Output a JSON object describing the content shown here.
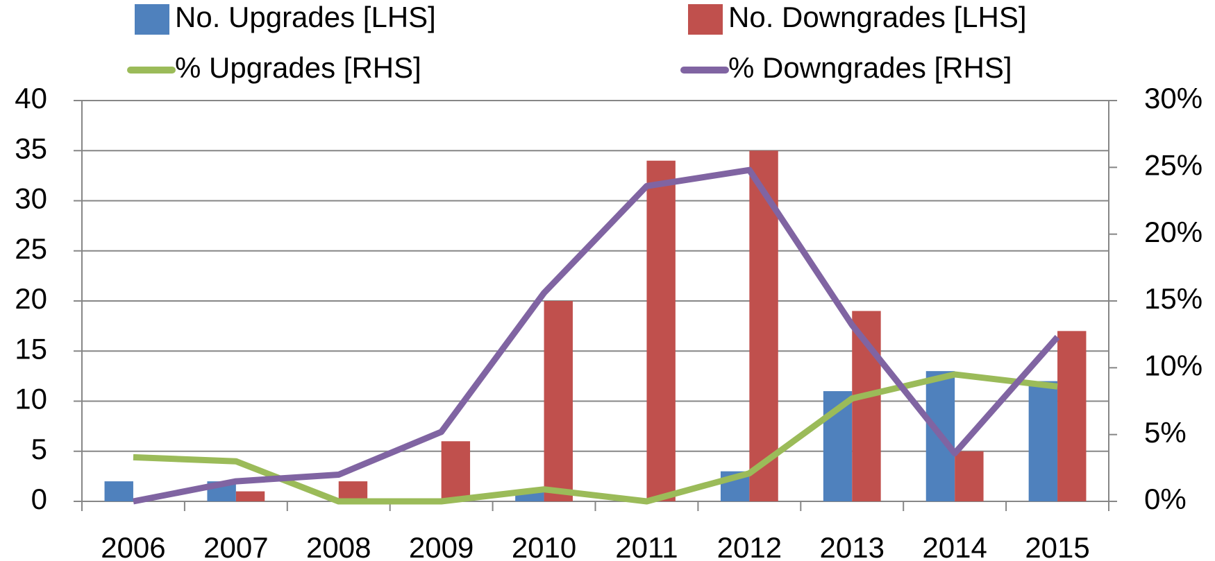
{
  "chart_data": {
    "type": "bar_line",
    "categories": [
      "2006",
      "2007",
      "2008",
      "2009",
      "2010",
      "2011",
      "2012",
      "2013",
      "2014",
      "2015"
    ],
    "series": [
      {
        "name": "No. Upgrades [LHS]",
        "type": "bar",
        "color": "#4f81bd",
        "values": [
          2,
          2,
          0,
          0,
          1,
          0,
          3,
          11,
          13,
          12
        ]
      },
      {
        "name": "No. Downgrades [LHS]",
        "type": "bar",
        "color": "#c0504d",
        "values": [
          0,
          1,
          2,
          6,
          20,
          34,
          35,
          19,
          5,
          17
        ]
      },
      {
        "name": "% Upgrades [RHS]",
        "type": "line",
        "axis": "y2",
        "color": "#9bbb59",
        "values": [
          3.3,
          3.0,
          0,
          0,
          0.9,
          0,
          2.1,
          7.7,
          9.5,
          8.6
        ]
      },
      {
        "name": "% Downgrades [RHS]",
        "type": "line",
        "axis": "y2",
        "color": "#8064a2",
        "values": [
          0,
          1.5,
          2.0,
          5.2,
          15.6,
          23.6,
          24.8,
          13.2,
          3.6,
          12.3
        ]
      }
    ],
    "ylim": [
      0,
      40
    ],
    "yticks": [
      0,
      5,
      10,
      15,
      20,
      25,
      30,
      35,
      40
    ],
    "y2lim": [
      0,
      30
    ],
    "y2ticks": [
      {
        "value": 0,
        "label": "0%"
      },
      {
        "value": 5,
        "label": "5%"
      },
      {
        "value": 10,
        "label": "10%"
      },
      {
        "value": 15,
        "label": "15%"
      },
      {
        "value": 20,
        "label": "20%"
      },
      {
        "value": 25,
        "label": "25%"
      },
      {
        "value": 30,
        "label": "30%"
      }
    ],
    "grid": true,
    "legend": "top"
  }
}
